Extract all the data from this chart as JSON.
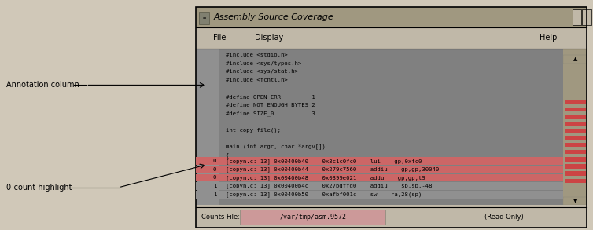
{
  "title": "Assembly Source Coverage",
  "window_bg": "#c0b8a8",
  "titlebar_bg": "#a09880",
  "titlebar_text_color": "#000000",
  "menu_bg": "#c0b8a8",
  "menu_items": [
    "File",
    "Display",
    "Help"
  ],
  "editor_bg": "#808080",
  "editor_text_color": "#000000",
  "scrollbar_bg": "#a09880",
  "scrollbar_red_color": "#cc4444",
  "code_lines": [
    "#include <stdio.h>",
    "#include <sys/types.h>",
    "#include <sys/stat.h>",
    "#include <fcntl.h>",
    "",
    "#define OPEN_ERR         1",
    "#define NOT_ENOUGH_BYTES 2",
    "#define SIZE_0           3",
    "",
    "int copy_file();",
    "",
    "main (int argc, char *argv[])",
    "{"
  ],
  "asm_lines": [
    {
      "count": "0",
      "file": "[copyn.c: 13]",
      "addr": "0x00400b40",
      "hex": "0x3c1c0fc0",
      "instr": "lui",
      "args": "gp,0xfc0",
      "highlight": true
    },
    {
      "count": "0",
      "file": "[copyn.c: 13]",
      "addr": "0x00400b44",
      "hex": "0x279c7560",
      "instr": "addiu",
      "args": "gp,gp,30040",
      "highlight": true
    },
    {
      "count": "0",
      "file": "[copyn.c: 13]",
      "addr": "0x00400b48",
      "hex": "0x0399e021",
      "instr": "addu",
      "args": "gp,gp,t9",
      "highlight": true
    },
    {
      "count": "1",
      "file": "[copyn.c: 13]",
      "addr": "0x00400b4c",
      "hex": "0x27bdffd0",
      "instr": "addiu",
      "args": "sp,sp,-48",
      "highlight": false
    },
    {
      "count": "1",
      "file": "[copyn.c: 13]",
      "addr": "0x00400b50",
      "hex": "0xafbf001c",
      "instr": "sw",
      "args": "ra,28(sp)",
      "highlight": false
    }
  ],
  "highlight_color": "#cc6666",
  "normal_asm_bg": "#909090",
  "status_bar_bg": "#c0b8a8",
  "counts_label": "Counts File:",
  "counts_file": "/var/tmp/asm.9572",
  "counts_file_bg": "#cc9999",
  "read_only_text": "(Read Only)",
  "annotation_label": "Annotation column",
  "zero_count_label": "0-count highlight",
  "fig_width": 7.54,
  "fig_height": 2.93,
  "dpi": 100,
  "outer_bg": "#d0c8b8"
}
